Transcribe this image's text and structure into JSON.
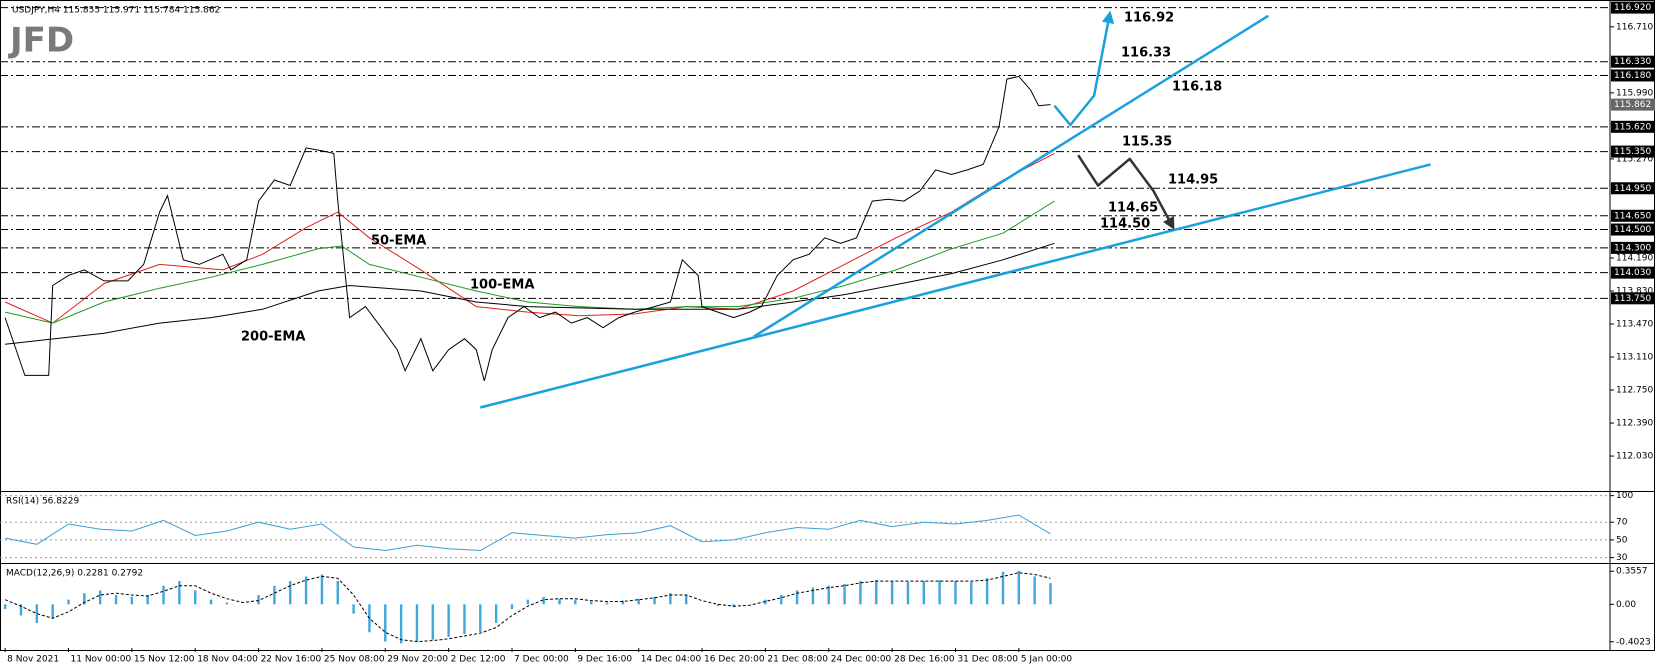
{
  "chart_data": [
    {
      "type": "line",
      "title": "USDJPY,H4  115.855 115.971 115.784 115.862",
      "logo": "JFD",
      "color": "#000000",
      "xlim": [
        -1.3,
        405.3
      ],
      "xticks": [
        {
          "value": 0,
          "label": "8 Nov 2021"
        },
        {
          "value": 16,
          "label": "11 Nov 00:00"
        },
        {
          "value": 32,
          "label": "15 Nov 12:00"
        },
        {
          "value": 48,
          "label": "18 Nov 04:00"
        },
        {
          "value": 64,
          "label": "22 Nov 16:00"
        },
        {
          "value": 80,
          "label": "25 Nov 08:00"
        },
        {
          "value": 96,
          "label": "29 Nov 20:00"
        },
        {
          "value": 112,
          "label": "2 Dec 12:00"
        },
        {
          "value": 128,
          "label": "7 Dec 00:00"
        },
        {
          "value": 144,
          "label": "9 Dec 16:00"
        },
        {
          "value": 160,
          "label": "14 Dec 04:00"
        },
        {
          "value": 176,
          "label": "16 Dec 20:00"
        },
        {
          "value": 192,
          "label": "21 Dec 08:00"
        },
        {
          "value": 208,
          "label": "24 Dec 00:00"
        },
        {
          "value": 224,
          "label": "28 Dec 16:00"
        },
        {
          "value": 240,
          "label": "31 Dec 08:00"
        },
        {
          "value": 256,
          "label": "5 Jan 00:00"
        }
      ],
      "ylim": [
        111.66,
        116.97
      ],
      "yticks": [
        {
          "value": 116.71,
          "label": "116.710"
        },
        {
          "value": 115.99,
          "label": "115.990"
        },
        {
          "value": 115.27,
          "label": "115.270"
        },
        {
          "value": 114.19,
          "label": "114.190"
        },
        {
          "value": 113.83,
          "label": "113.830"
        },
        {
          "value": 113.47,
          "label": "113.470"
        },
        {
          "value": 113.11,
          "label": "113.110"
        },
        {
          "value": 112.75,
          "label": "112.750"
        },
        {
          "value": 112.39,
          "label": "112.390"
        },
        {
          "value": 112.03,
          "label": "112.030"
        }
      ],
      "levels": [
        {
          "value": 116.92,
          "label": "116.920"
        },
        {
          "value": 116.33,
          "label": "116.330"
        },
        {
          "value": 116.18,
          "label": "116.180"
        },
        {
          "value": 115.62,
          "label": "115.620"
        },
        {
          "value": 115.35,
          "label": "115.350"
        },
        {
          "value": 114.95,
          "label": "114.950"
        },
        {
          "value": 114.65,
          "label": "114.650"
        },
        {
          "value": 114.5,
          "label": "114.500"
        },
        {
          "value": 114.3,
          "label": "114.300"
        },
        {
          "value": 114.03,
          "label": "114.030"
        },
        {
          "value": 113.75,
          "label": "113.750"
        }
      ],
      "current": 115.862,
      "x": [
        0,
        5,
        11,
        12,
        16,
        20,
        25,
        31,
        35,
        39,
        41,
        45,
        49,
        55,
        57,
        61,
        64,
        68,
        72,
        76,
        80,
        83,
        84,
        87,
        91,
        95,
        99,
        101,
        105,
        108,
        112,
        116,
        119,
        121,
        123,
        127,
        131,
        135,
        139,
        143,
        147,
        151,
        155,
        159,
        164,
        168,
        171,
        175,
        176,
        180,
        184,
        188,
        191,
        195,
        199,
        203,
        207,
        211,
        215,
        219,
        223,
        227,
        231,
        235,
        239,
        243,
        247,
        251,
        253,
        256,
        259,
        261,
        264
      ],
      "values": [
        113.54,
        112.91,
        112.91,
        113.89,
        114.0,
        114.06,
        113.94,
        113.94,
        114.12,
        114.69,
        114.87,
        114.17,
        114.12,
        114.23,
        114.06,
        114.17,
        114.81,
        115.04,
        114.98,
        115.39,
        115.36,
        115.33,
        114.81,
        113.54,
        113.66,
        113.43,
        113.19,
        112.96,
        113.31,
        112.96,
        113.19,
        113.31,
        113.19,
        112.85,
        113.19,
        113.54,
        113.66,
        113.54,
        113.6,
        113.48,
        113.54,
        113.43,
        113.54,
        113.6,
        113.66,
        113.71,
        114.17,
        114.0,
        113.66,
        113.6,
        113.54,
        113.6,
        113.66,
        114.0,
        114.17,
        114.23,
        114.41,
        114.35,
        114.41,
        114.81,
        114.83,
        114.81,
        114.92,
        115.15,
        115.1,
        115.15,
        115.21,
        115.62,
        116.14,
        116.17,
        116.02,
        115.85,
        115.862
      ],
      "series": [
        {
          "name": "50-EMA",
          "color": "#e0201c",
          "x": [
            0,
            12,
            25,
            39,
            55,
            65,
            76,
            84,
            92,
            105,
            119,
            132,
            145,
            159,
            172,
            185,
            199,
            212,
            225,
            239,
            252,
            265
          ],
          "values": [
            113.71,
            113.48,
            113.91,
            114.12,
            114.06,
            114.23,
            114.52,
            114.69,
            114.41,
            114.06,
            113.66,
            113.6,
            113.56,
            113.58,
            113.66,
            113.63,
            113.83,
            114.12,
            114.41,
            114.69,
            115.04,
            115.33
          ]
        },
        {
          "name": "100-EMA",
          "color": "#1f9a1f",
          "x": [
            0,
            12,
            25,
            39,
            52,
            65,
            79,
            85,
            92,
            105,
            119,
            132,
            145,
            159,
            172,
            185,
            199,
            212,
            225,
            239,
            252,
            265
          ],
          "values": [
            113.6,
            113.48,
            113.71,
            113.86,
            113.98,
            114.12,
            114.29,
            114.32,
            114.12,
            113.98,
            113.83,
            113.71,
            113.66,
            113.63,
            113.66,
            113.66,
            113.75,
            113.89,
            114.06,
            114.29,
            114.46,
            114.81
          ]
        },
        {
          "name": "200-EMA",
          "color": "#000000",
          "x": [
            0,
            25,
            39,
            52,
            65,
            79,
            87,
            105,
            119,
            132,
            159,
            185,
            199,
            212,
            225,
            239,
            252,
            265
          ],
          "values": [
            113.25,
            113.37,
            113.48,
            113.54,
            113.63,
            113.83,
            113.89,
            113.83,
            113.71,
            113.66,
            113.63,
            113.63,
            113.71,
            113.79,
            113.9,
            114.02,
            114.17,
            114.35
          ]
        }
      ],
      "trendlines": [
        {
          "color": "#1aa0dc",
          "x": [
            120,
            360
          ],
          "values": [
            112.56,
            115.21
          ]
        },
        {
          "color": "#1aa0dc",
          "x": [
            189,
            319
          ],
          "values": [
            113.33,
            116.83
          ]
        }
      ],
      "scenarios": [
        {
          "color": "#1aa0dc",
          "x": [
            265,
            269,
            275,
            279
          ],
          "values": [
            115.85,
            115.64,
            115.96,
            116.86
          ]
        },
        {
          "color": "#333333",
          "x": [
            271,
            276,
            284,
            290,
            295
          ],
          "values": [
            115.31,
            114.98,
            115.27,
            114.92,
            114.52
          ]
        }
      ],
      "annotations": [
        116.92,
        116.33,
        116.18,
        115.35,
        114.95,
        114.65,
        {
          "value": 114.5,
          "label": "114.50"
        }
      ]
    },
    {
      "type": "line",
      "title": "RSI(14) 56.8229",
      "color": "#3aa0d8",
      "grid": true,
      "ylim": [
        25,
        103
      ],
      "yticks": [
        100,
        70,
        50,
        30
      ],
      "x": [
        0,
        8,
        16,
        24,
        32,
        40,
        48,
        56,
        64,
        72,
        80,
        88,
        96,
        104,
        112,
        120,
        128,
        136,
        144,
        152,
        160,
        168,
        176,
        184,
        192,
        200,
        208,
        216,
        224,
        232,
        240,
        248,
        256,
        264
      ],
      "values": [
        52,
        45,
        68,
        62,
        60,
        72,
        55,
        60,
        70,
        62,
        68,
        42,
        38,
        44,
        40,
        38,
        58,
        55,
        52,
        56,
        58,
        66,
        48,
        50,
        58,
        64,
        62,
        72,
        65,
        70,
        68,
        72,
        78,
        56.8229
      ]
    },
    {
      "type": "bar",
      "title": "MACD(12,26,9) 0.2281 0.2792",
      "ylim": [
        -0.4692,
        0.4226
      ],
      "yticks": [
        0.3557,
        {
          "value": 0,
          "label": "0.00"
        },
        -0.4023
      ],
      "x": [
        0,
        4,
        8,
        12,
        16,
        20,
        24,
        28,
        32,
        36,
        40,
        44,
        48,
        52,
        56,
        60,
        64,
        68,
        72,
        76,
        80,
        84,
        88,
        92,
        96,
        100,
        104,
        108,
        112,
        116,
        120,
        124,
        128,
        132,
        136,
        140,
        144,
        148,
        152,
        156,
        160,
        164,
        168,
        172,
        176,
        180,
        184,
        188,
        192,
        196,
        200,
        204,
        208,
        212,
        216,
        220,
        224,
        228,
        232,
        236,
        240,
        244,
        248,
        252,
        256,
        260,
        264
      ],
      "series": [
        {
          "type": "bar",
          "color": "#3fa6e0",
          "values": [
            -0.05,
            -0.12,
            -0.2,
            -0.15,
            0.05,
            0.12,
            0.15,
            0.1,
            0.08,
            0.1,
            0.2,
            0.25,
            0.15,
            0.05,
            0.02,
            0.0,
            0.1,
            0.2,
            0.25,
            0.3,
            0.32,
            0.25,
            -0.1,
            -0.3,
            -0.4,
            -0.42,
            -0.4,
            -0.38,
            -0.35,
            -0.32,
            -0.3,
            -0.2,
            -0.05,
            0.05,
            0.08,
            0.06,
            0.05,
            0.03,
            0.02,
            0.04,
            0.06,
            0.08,
            0.12,
            0.1,
            0.0,
            -0.02,
            -0.03,
            0.0,
            0.05,
            0.1,
            0.15,
            0.18,
            0.2,
            0.22,
            0.25,
            0.26,
            0.25,
            0.24,
            0.25,
            0.26,
            0.25,
            0.24,
            0.28,
            0.35,
            0.36,
            0.3,
            0.2281
          ]
        },
        {
          "type": "line",
          "color": "#000000",
          "values": [
            0.05,
            -0.02,
            -0.1,
            -0.15,
            -0.08,
            0.02,
            0.1,
            0.12,
            0.1,
            0.09,
            0.14,
            0.2,
            0.2,
            0.12,
            0.06,
            0.02,
            0.04,
            0.12,
            0.2,
            0.26,
            0.3,
            0.28,
            0.1,
            -0.15,
            -0.3,
            -0.38,
            -0.4,
            -0.39,
            -0.37,
            -0.34,
            -0.31,
            -0.25,
            -0.12,
            -0.02,
            0.05,
            0.06,
            0.06,
            0.04,
            0.03,
            0.03,
            0.05,
            0.07,
            0.1,
            0.1,
            0.04,
            0.0,
            -0.02,
            -0.01,
            0.03,
            0.07,
            0.12,
            0.15,
            0.18,
            0.2,
            0.23,
            0.25,
            0.25,
            0.25,
            0.25,
            0.25,
            0.25,
            0.25,
            0.26,
            0.3,
            0.34,
            0.32,
            0.2792
          ]
        }
      ]
    }
  ]
}
